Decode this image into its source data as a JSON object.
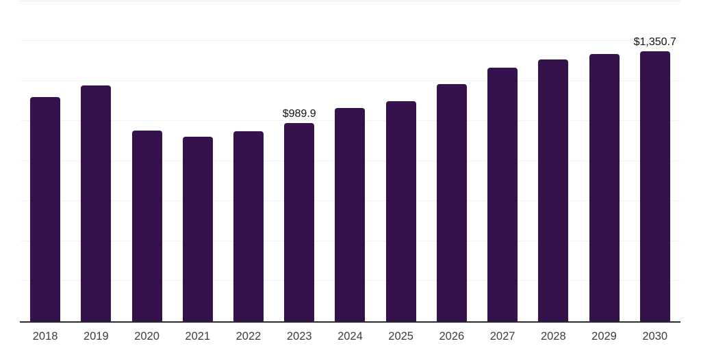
{
  "chart_data": {
    "type": "bar",
    "title": "",
    "xlabel": "",
    "ylabel": "",
    "categories": [
      "2018",
      "2019",
      "2020",
      "2021",
      "2022",
      "2023",
      "2024",
      "2025",
      "2026",
      "2027",
      "2028",
      "2029",
      "2030"
    ],
    "values": [
      1119,
      1178,
      953,
      922,
      950,
      989.9,
      1064,
      1100,
      1186,
      1266,
      1308,
      1334,
      1350.7
    ],
    "value_labels": [
      "",
      "",
      "",
      "",
      "",
      "$989.9",
      "",
      "",
      "",
      "",
      "",
      "",
      "$1,350.7"
    ],
    "ylim": [
      0,
      1600
    ],
    "gridline_step": 200,
    "grid": true,
    "legend": false,
    "y_tick_labels_visible": false
  },
  "colors": {
    "bar": "#36124D",
    "gridline": "#f4f4f4",
    "top_gridline": "#e8e8e8",
    "axis": "#2b2b2b",
    "tick_label": "#3d3d3d",
    "data_label": "#101010",
    "background": "#ffffff"
  }
}
